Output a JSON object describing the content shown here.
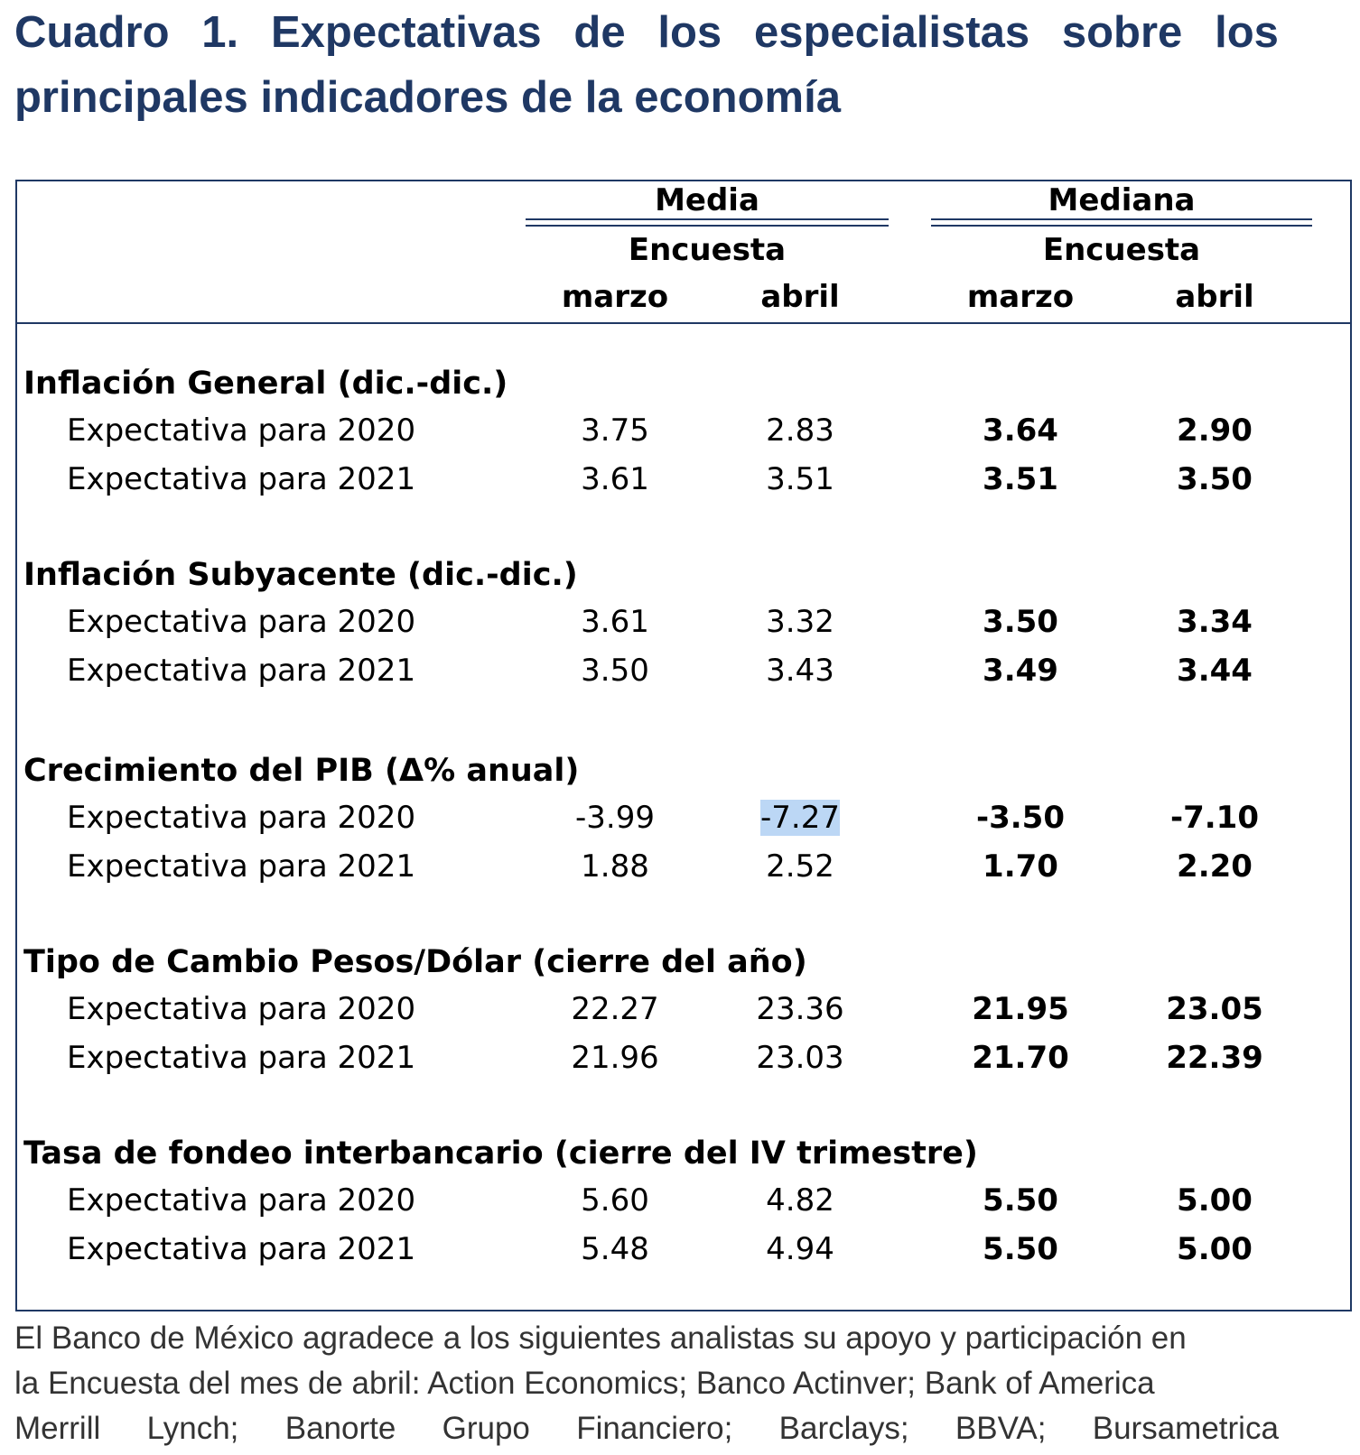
{
  "title": {
    "line1_words": [
      "Cuadro",
      "1.",
      "Expectativas",
      "de",
      "los",
      "especialistas",
      "sobre",
      "los"
    ],
    "line2": "principales indicadores de la economía"
  },
  "table": {
    "header": {
      "media": "Media",
      "mediana": "Mediana",
      "encuesta": "Encuesta",
      "marzo": "marzo",
      "abril": "abril"
    },
    "sections": [
      {
        "title": "Inflación General (dic.-dic.)",
        "rows": [
          {
            "label": "Expectativa para 2020",
            "values": [
              "3.75",
              "2.83",
              "3.64",
              "2.90"
            ]
          },
          {
            "label": "Expectativa para 2021",
            "values": [
              "3.61",
              "3.51",
              "3.51",
              "3.50"
            ]
          }
        ]
      },
      {
        "title": "Inflación Subyacente (dic.-dic.)",
        "rows": [
          {
            "label": "Expectativa para 2020",
            "values": [
              "3.61",
              "3.32",
              "3.50",
              "3.34"
            ]
          },
          {
            "label": "Expectativa para 2021",
            "values": [
              "3.50",
              "3.43",
              "3.49",
              "3.44"
            ]
          }
        ]
      },
      {
        "title": "Crecimiento del PIB (Δ% anual)",
        "rows": [
          {
            "label": "Expectativa para 2020",
            "values": [
              "-3.99",
              "-7.27",
              "-3.50",
              "-7.10"
            ]
          },
          {
            "label": "Expectativa para 2021",
            "values": [
              "1.88",
              "2.52",
              "1.70",
              "2.20"
            ]
          }
        ]
      },
      {
        "title": "Tipo de Cambio Pesos/Dólar (cierre del año)",
        "rows": [
          {
            "label": "Expectativa para 2020",
            "values": [
              "22.27",
              "23.36",
              "21.95",
              "23.05"
            ]
          },
          {
            "label": "Expectativa para 2021",
            "values": [
              "21.96",
              "23.03",
              "21.70",
              "22.39"
            ]
          }
        ]
      },
      {
        "title": "Tasa de fondeo interbancario (cierre del IV trimestre)",
        "rows": [
          {
            "label": "Expectativa para 2020",
            "values": [
              "5.60",
              "4.82",
              "5.50",
              "5.00"
            ]
          },
          {
            "label": "Expectativa para 2021",
            "values": [
              "5.48",
              "4.94",
              "5.50",
              "5.00"
            ]
          }
        ]
      }
    ]
  },
  "footnote": {
    "line1": "El Banco de México agradece a los siguientes analistas su apoyo y participación en",
    "line2": "la Encuesta del mes de abril:  Action Economics; Banco Actinver; Bank of America",
    "line3_words": [
      "Merrill",
      "Lynch;",
      "Banorte",
      "Grupo",
      "Financiero;",
      "Barclays;",
      "BBVA;",
      "Bursametrica"
    ]
  },
  "colors": {
    "title": "#1f3864",
    "border": "#1f3864",
    "highlight": "#bcd7f5"
  }
}
